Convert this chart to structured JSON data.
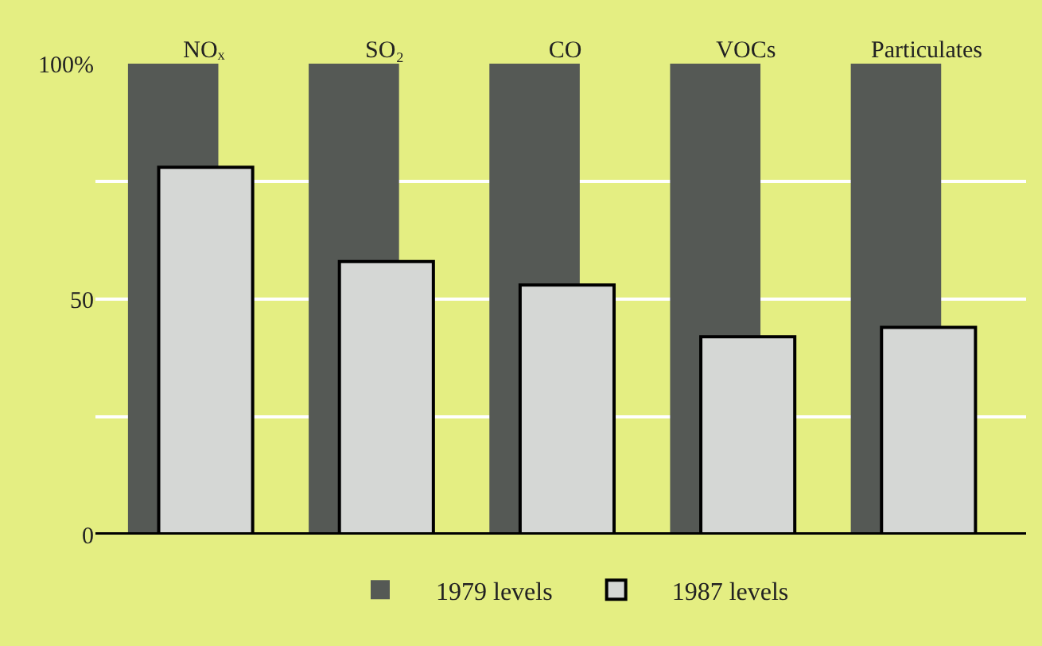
{
  "chart_data": {
    "type": "bar",
    "categories": [
      "NOₓ",
      "SO₂",
      "CO",
      "VOCs",
      "Particulates"
    ],
    "series": [
      {
        "name": "1979 levels",
        "color": "#555955",
        "values": [
          100,
          100,
          100,
          100,
          100
        ]
      },
      {
        "name": "1987 levels",
        "color": "#d5d7d5",
        "values": [
          78,
          58,
          53,
          42,
          44
        ]
      }
    ],
    "ylim": [
      0,
      100
    ],
    "yticks": [
      0,
      {
        "value": 25,
        "label": null
      },
      50,
      {
        "value": 75,
        "label": null
      },
      {
        "value": 100,
        "label": "100%"
      }
    ],
    "grid": "y",
    "legend": "bottom"
  }
}
